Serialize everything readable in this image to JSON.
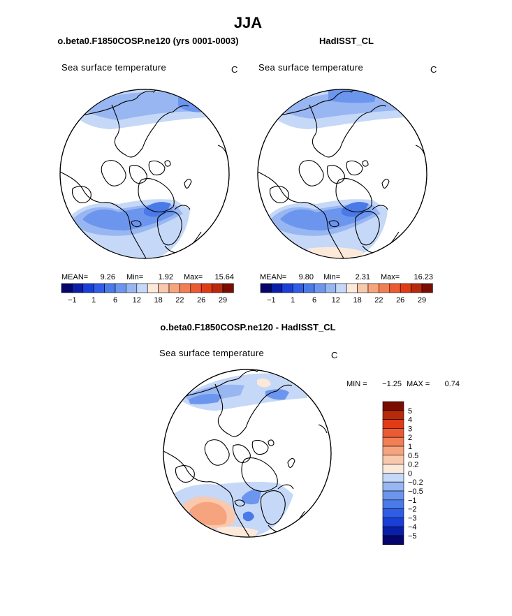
{
  "figure": {
    "title": "JJA",
    "diff_title": "o.beta0.F1850COSP.ne120 - HadISST_CL",
    "units": "C"
  },
  "chart_data": [
    {
      "type": "heatmap",
      "id": "model",
      "title": "o.beta0.F1850COSP.ne120 (yrs 0001-0003)",
      "subtitle": "Sea surface temperature",
      "units": "C",
      "projection": "north polar stereographic",
      "stats": {
        "mean_label": "MEAN=",
        "mean": "9.26",
        "min_label": "Min=",
        "min": "1.92",
        "max_label": "Max=",
        "max": "15.64"
      },
      "legend": {
        "orientation": "horizontal",
        "colors": [
          "#05056b",
          "#0a1ea8",
          "#1a3fd6",
          "#2f5de6",
          "#4a7ae8",
          "#6c96ee",
          "#98b6f2",
          "#c5d8f7",
          "#fde9da",
          "#f9c8ad",
          "#f6a47e",
          "#f27e54",
          "#ec5a33",
          "#e03b14",
          "#b82a0c",
          "#7a0d03"
        ],
        "ticks": [
          "-1",
          "1",
          "6",
          "12",
          "18",
          "22",
          "26",
          "29"
        ]
      }
    },
    {
      "type": "heatmap",
      "id": "obs",
      "title": "HadISST_CL",
      "subtitle": "Sea surface temperature",
      "units": "C",
      "projection": "north polar stereographic",
      "stats": {
        "mean_label": "MEAN=",
        "mean": "9.80",
        "min_label": "Min=",
        "min": "2.31",
        "max_label": "Max=",
        "max": "16.23"
      },
      "legend": {
        "orientation": "horizontal",
        "colors": [
          "#05056b",
          "#0a1ea8",
          "#1a3fd6",
          "#2f5de6",
          "#4a7ae8",
          "#6c96ee",
          "#98b6f2",
          "#c5d8f7",
          "#fde9da",
          "#f9c8ad",
          "#f6a47e",
          "#f27e54",
          "#ec5a33",
          "#e03b14",
          "#b82a0c",
          "#7a0d03"
        ],
        "ticks": [
          "-1",
          "1",
          "6",
          "12",
          "18",
          "22",
          "26",
          "29"
        ]
      }
    },
    {
      "type": "heatmap",
      "id": "diff",
      "title": "o.beta0.F1850COSP.ne120 - HadISST_CL",
      "subtitle": "Sea surface temperature",
      "units": "C",
      "projection": "north polar stereographic",
      "stats": {
        "min_label": "MIN =",
        "min": "-1.25",
        "max_label": "MAX =",
        "max": "0.74"
      },
      "legend": {
        "orientation": "vertical",
        "levels": [
          "5",
          "4",
          "3",
          "2",
          "1",
          "0.5",
          "0.2",
          "0",
          "-0.2",
          "-0.5",
          "-1",
          "-2",
          "-3",
          "-4",
          "-5"
        ],
        "colors": [
          "#7a0d03",
          "#b82a0c",
          "#e03b14",
          "#ec5a33",
          "#f27e54",
          "#f6a47e",
          "#f9c8ad",
          "#fde9da",
          "#c5d8f7",
          "#98b6f2",
          "#6c96ee",
          "#4a7ae8",
          "#2f5de6",
          "#1a3fd6",
          "#0a1ea8",
          "#05056b"
        ]
      }
    }
  ]
}
